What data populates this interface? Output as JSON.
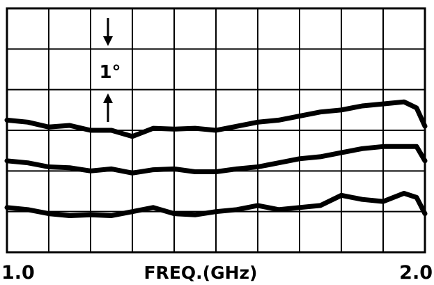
{
  "chart_data": {
    "type": "line",
    "title": "",
    "xlabel": "FREQ.(GHz)",
    "ylabel": "",
    "x_tick_labels": [
      "1.0",
      "2.0"
    ],
    "xlim": [
      1.0,
      2.0
    ],
    "ylim": [
      0,
      6
    ],
    "grid": true,
    "grid_divisions": {
      "x": 10,
      "y": 6
    },
    "scale_annotation": "1°",
    "series": [
      {
        "x": [
          1.0,
          1.05,
          1.1,
          1.15,
          1.2,
          1.25,
          1.3,
          1.35,
          1.4,
          1.45,
          1.5,
          1.55,
          1.6,
          1.65,
          1.7,
          1.75,
          1.8,
          1.85,
          1.9,
          1.95,
          1.98,
          2.0
        ],
        "y": [
          3.25,
          3.2,
          3.08,
          3.12,
          3.0,
          3.0,
          2.85,
          3.05,
          3.03,
          3.05,
          3.0,
          3.1,
          3.2,
          3.25,
          3.35,
          3.45,
          3.5,
          3.6,
          3.65,
          3.7,
          3.55,
          3.1
        ]
      },
      {
        "x": [
          1.0,
          1.05,
          1.1,
          1.15,
          1.2,
          1.25,
          1.3,
          1.35,
          1.4,
          1.45,
          1.5,
          1.55,
          1.6,
          1.65,
          1.7,
          1.75,
          1.8,
          1.85,
          1.9,
          1.95,
          1.98,
          2.0
        ],
        "y": [
          2.25,
          2.2,
          2.1,
          2.08,
          2.0,
          2.05,
          1.95,
          2.03,
          2.05,
          1.98,
          1.98,
          2.05,
          2.1,
          2.2,
          2.3,
          2.35,
          2.45,
          2.55,
          2.6,
          2.6,
          2.6,
          2.25
        ]
      },
      {
        "x": [
          1.0,
          1.05,
          1.1,
          1.15,
          1.2,
          1.25,
          1.3,
          1.35,
          1.4,
          1.45,
          1.5,
          1.55,
          1.6,
          1.65,
          1.7,
          1.75,
          1.8,
          1.85,
          1.9,
          1.95,
          1.98,
          2.0
        ],
        "y": [
          1.1,
          1.05,
          0.95,
          0.9,
          0.92,
          0.9,
          1.0,
          1.1,
          0.95,
          0.92,
          1.0,
          1.05,
          1.15,
          1.05,
          1.1,
          1.15,
          1.4,
          1.3,
          1.25,
          1.45,
          1.35,
          0.95
        ]
      }
    ]
  }
}
